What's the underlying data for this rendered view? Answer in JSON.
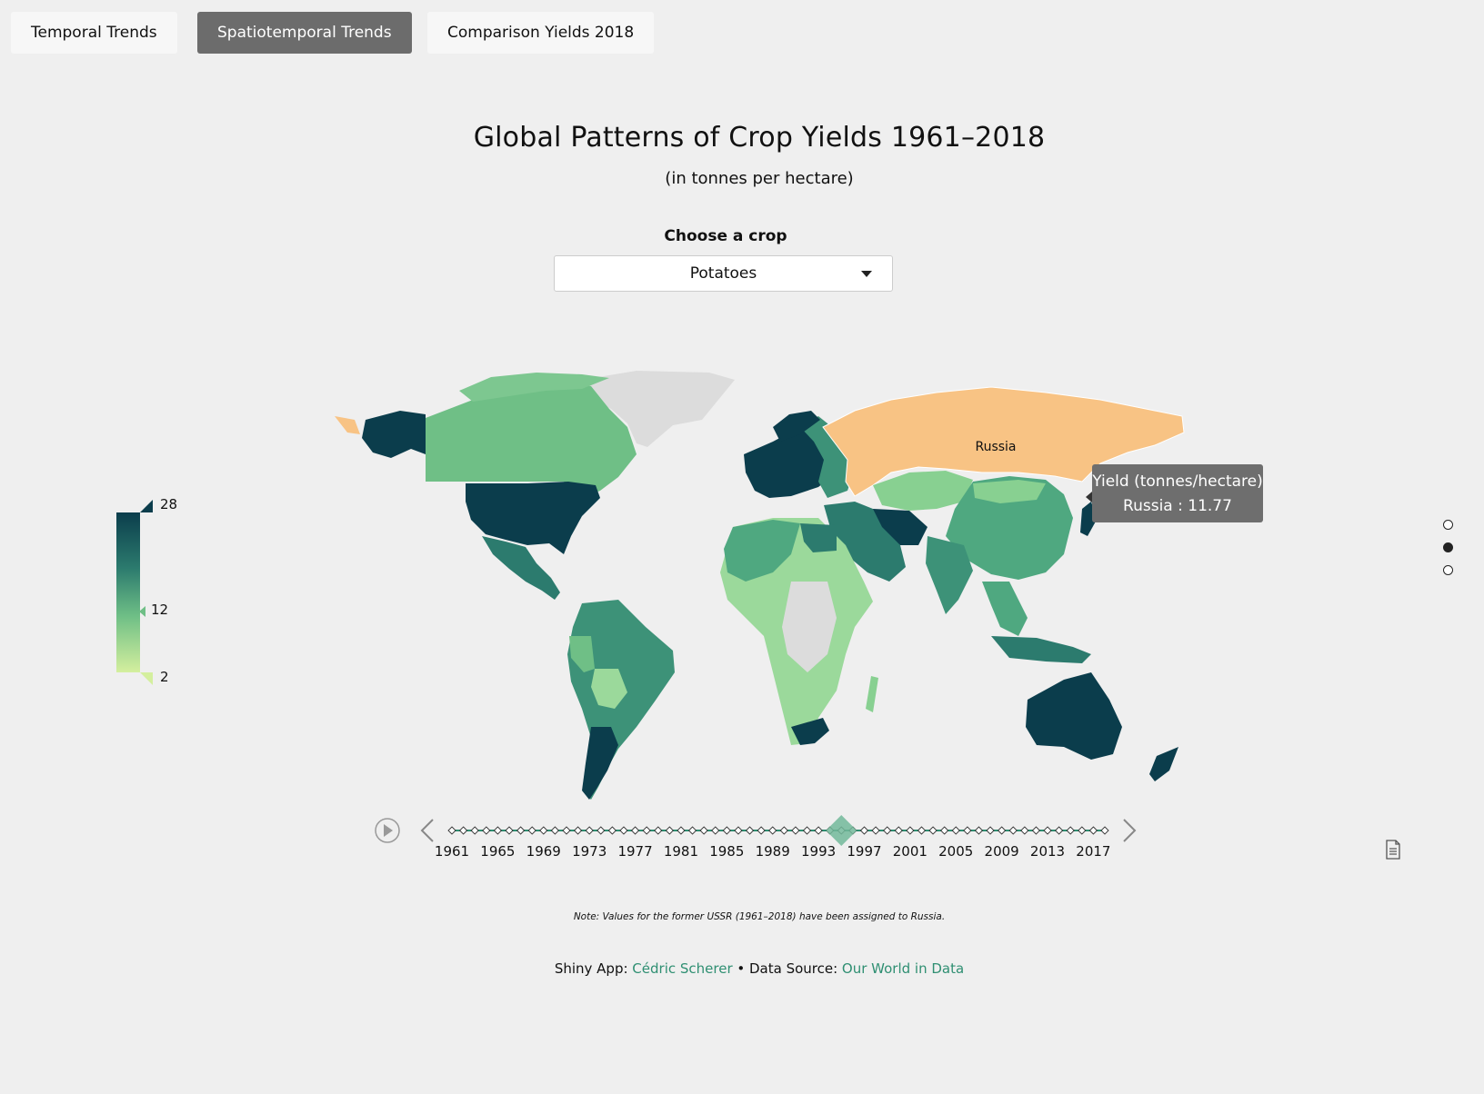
{
  "tabs": [
    {
      "label": "Temporal Trends",
      "active": false
    },
    {
      "label": "Spatiotemporal Trends",
      "active": true
    },
    {
      "label": "Comparison Yields 2018",
      "active": false
    }
  ],
  "header": {
    "title": "Global Patterns of Crop Yields 1961–2018",
    "subtitle": "(in tonnes per hectare)"
  },
  "crop_select": {
    "label": "Choose a crop",
    "selected": "Potatoes"
  },
  "legend": {
    "max": "28",
    "mid": "12",
    "min": "2",
    "colors": [
      "#0b3d4c",
      "#2c7b6e",
      "#6fbf86",
      "#d4ef9e"
    ]
  },
  "map": {
    "highlighted_country": "Russia",
    "highlight_color": "#f8c384",
    "no_data_color": "#dcdcdc"
  },
  "tooltip": {
    "title": "Yield (tonnes/hectare)",
    "value_line": "Russia : 11.77"
  },
  "timeline": {
    "play_icon": "play-icon",
    "prev_icon": "chevron-left-icon",
    "next_icon": "chevron-right-icon",
    "labels": [
      "1961",
      "1965",
      "1969",
      "1973",
      "1977",
      "1981",
      "1985",
      "1989",
      "1993",
      "1997",
      "2001",
      "2005",
      "2009",
      "2013",
      "2017"
    ],
    "start_year": 1961,
    "end_year": 2018,
    "selected_year": 1995
  },
  "page_nav": {
    "count": 3,
    "active_index": 1
  },
  "note": "Note: Values for the former USSR (1961–2018) have been assigned to Russia.",
  "footer": {
    "app_prefix": "Shiny App: ",
    "author": "Cédric Scherer",
    "separator": " • Data Source: ",
    "source": "Our World in Data"
  },
  "report_icon": "document-icon"
}
